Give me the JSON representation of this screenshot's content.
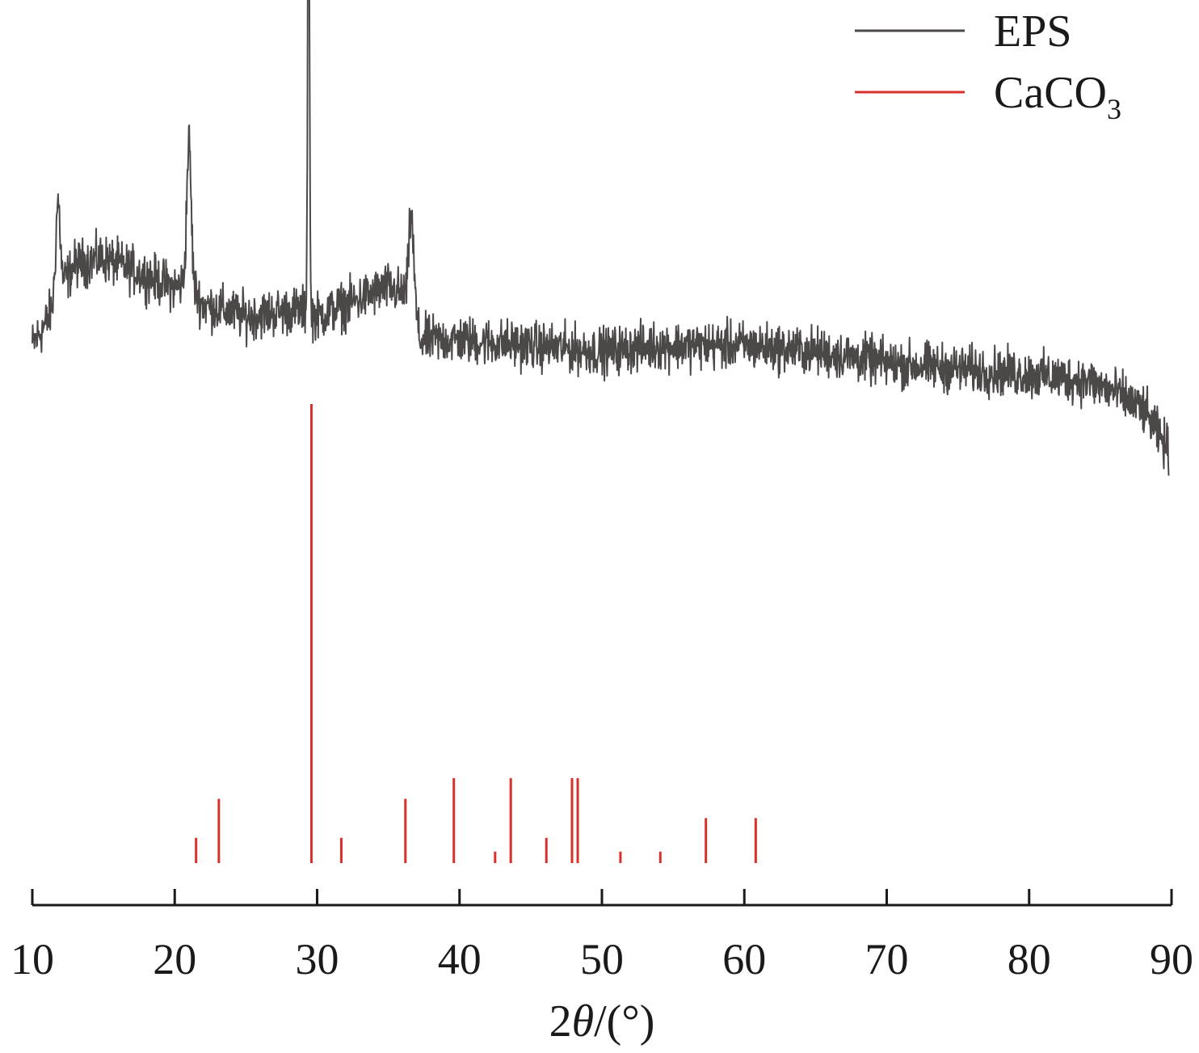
{
  "chart_data": {
    "type": "line",
    "title": "",
    "xlabel": "2θ/(°)",
    "xlabel_parts": {
      "pre": "2",
      "theta": "θ",
      "post": "/(°)"
    },
    "ylabel": "",
    "xlim": [
      10,
      90
    ],
    "x_ticks": [
      10,
      20,
      30,
      40,
      50,
      60,
      70,
      80,
      90
    ],
    "x_tick_labels": [
      "10",
      "20",
      "30",
      "40",
      "50",
      "60",
      "70",
      "80",
      "90"
    ],
    "y_axis_visible": false,
    "grid": false,
    "legend_position": "top-right",
    "series": [
      {
        "name": "EPS",
        "kind": "line",
        "color": "#4d4848",
        "baseline": [
          [
            10,
            0.42
          ],
          [
            11,
            0.46
          ],
          [
            12,
            0.52
          ],
          [
            13,
            0.56
          ],
          [
            15,
            0.57
          ],
          [
            17,
            0.55
          ],
          [
            20,
            0.52
          ],
          [
            21,
            0.53
          ],
          [
            22,
            0.49
          ],
          [
            25,
            0.47
          ],
          [
            28,
            0.48
          ],
          [
            29,
            0.48
          ],
          [
            30,
            0.47
          ],
          [
            33,
            0.5
          ],
          [
            35,
            0.52
          ],
          [
            36.8,
            0.5
          ],
          [
            37.2,
            0.43
          ],
          [
            40,
            0.43
          ],
          [
            45,
            0.42
          ],
          [
            50,
            0.41
          ],
          [
            54,
            0.42
          ],
          [
            60,
            0.42
          ],
          [
            65,
            0.41
          ],
          [
            70,
            0.39
          ],
          [
            75,
            0.38
          ],
          [
            80,
            0.37
          ],
          [
            84,
            0.36
          ],
          [
            86,
            0.34
          ],
          [
            88,
            0.31
          ],
          [
            89,
            0.27
          ],
          [
            89.8,
            0.24
          ]
        ],
        "peaks": [
          {
            "x": 11.8,
            "height": 0.16
          },
          {
            "x": 21.0,
            "height": 0.24
          },
          {
            "x": 29.4,
            "height": 0.85
          },
          {
            "x": 36.6,
            "height": 0.14
          }
        ],
        "noise_amplitude": 0.06
      },
      {
        "name": "CaCO₃",
        "legend_parts": {
          "base": "CaCO",
          "sub": "3"
        },
        "kind": "stick",
        "color": "#d9302b",
        "x": [
          21.5,
          23.1,
          29.6,
          31.7,
          36.2,
          39.6,
          42.5,
          43.6,
          46.1,
          47.9,
          48.3,
          51.3,
          54.1,
          57.3,
          60.8
        ],
        "values": [
          0.055,
          0.14,
          1.0,
          0.055,
          0.14,
          0.185,
          0.025,
          0.185,
          0.055,
          0.185,
          0.185,
          0.025,
          0.025,
          0.098,
          0.098
        ]
      }
    ]
  }
}
